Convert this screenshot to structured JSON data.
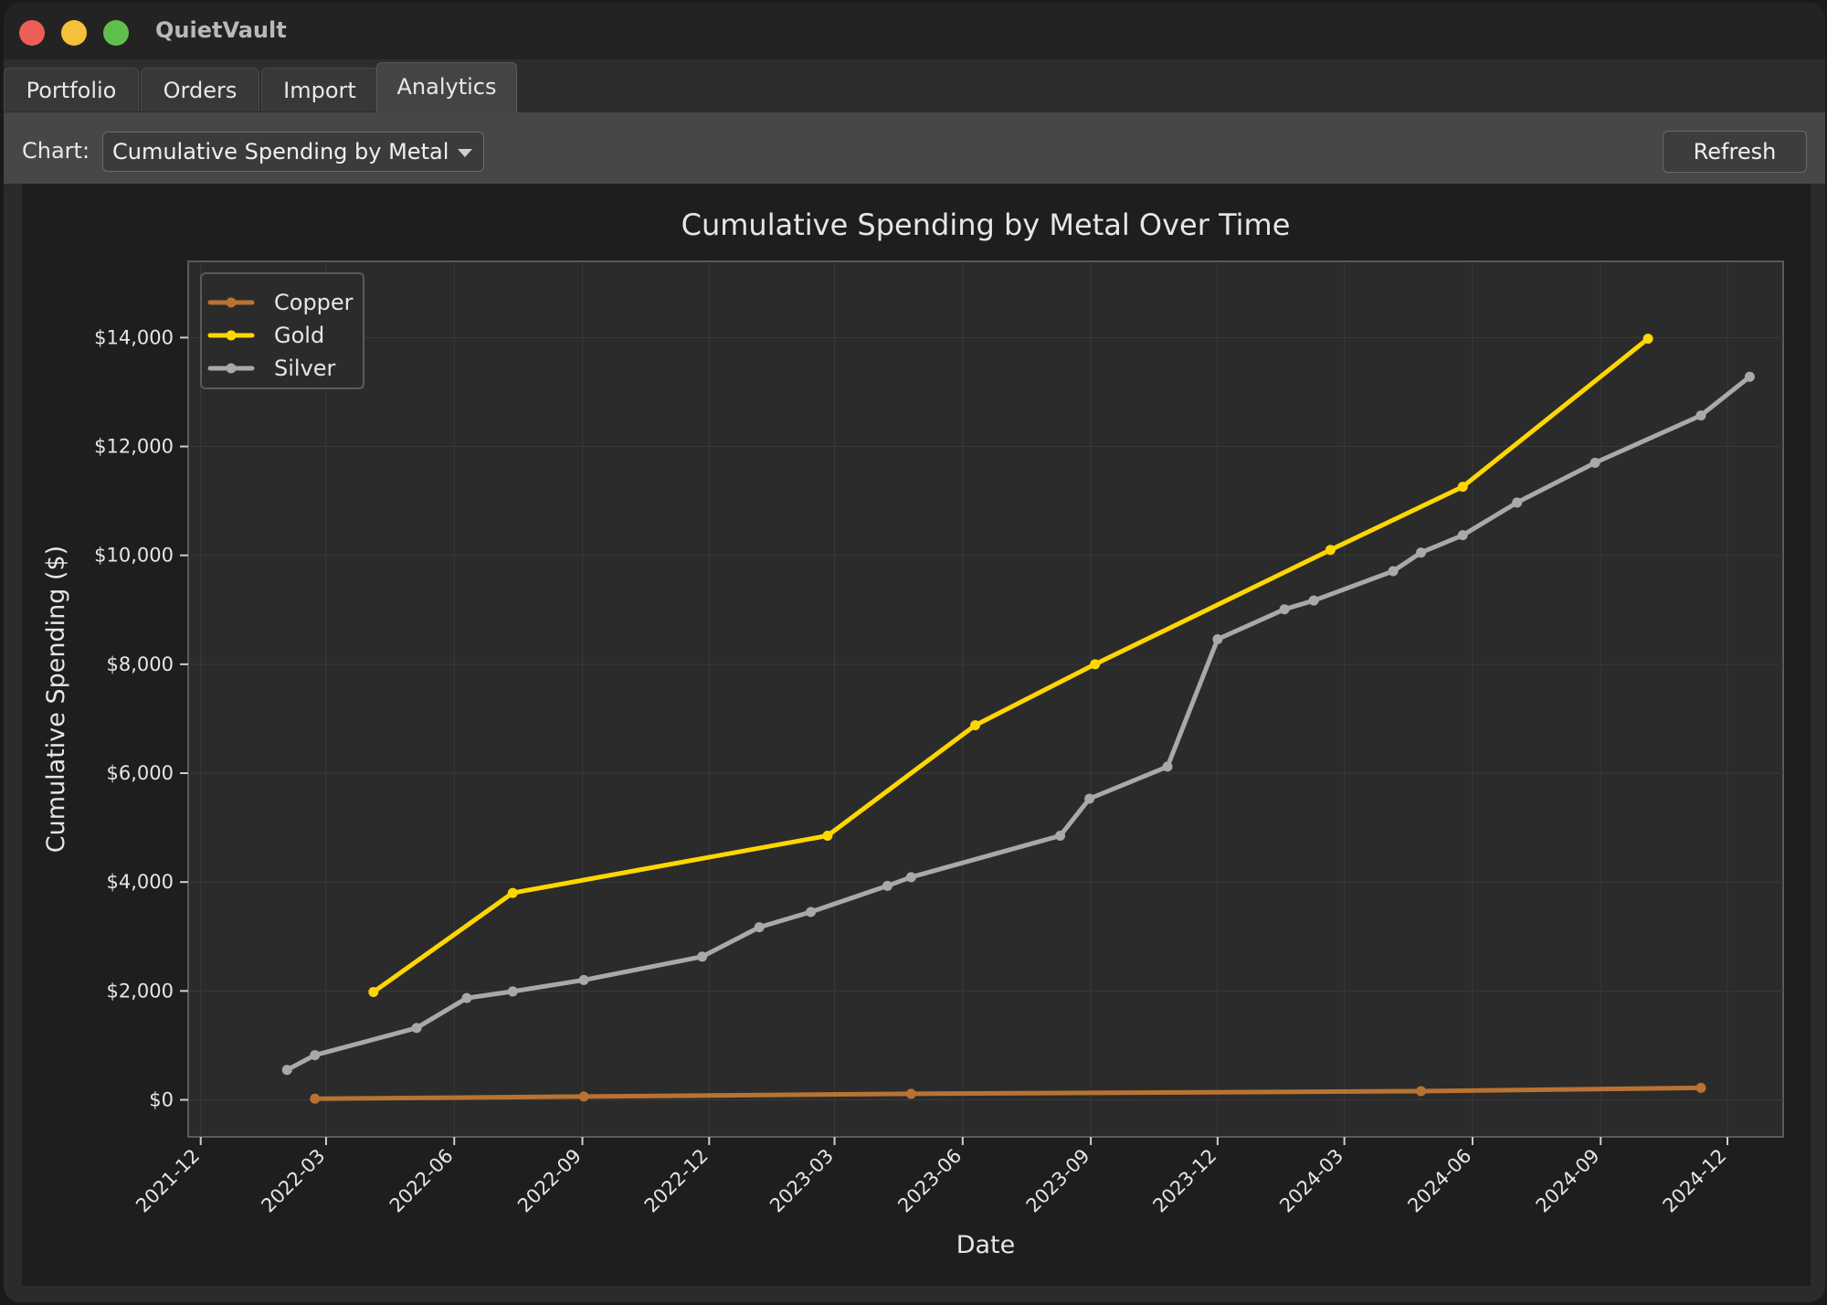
{
  "app": {
    "title": "QuietVault"
  },
  "tabs": [
    {
      "label": "Portfolio",
      "active": false
    },
    {
      "label": "Orders",
      "active": false
    },
    {
      "label": "Import",
      "active": false
    },
    {
      "label": "Analytics",
      "active": true
    }
  ],
  "toolbar": {
    "chart_label": "Chart:",
    "chart_select_value": "Cumulative Spending by Metal",
    "refresh_label": "Refresh"
  },
  "colors": {
    "copper": "#b87333",
    "gold": "#ffd700",
    "silver": "#a9a9a9"
  },
  "chart_data": {
    "type": "line",
    "title": "Cumulative Spending by Metal Over Time",
    "xlabel": "Date",
    "ylabel": "Cumulative Spending ($)",
    "xlim": [
      "2021-11-22",
      "2025-01-10"
    ],
    "ylim": [
      -680,
      15400
    ],
    "x_ticks": [
      "2021-12",
      "2022-03",
      "2022-06",
      "2022-09",
      "2022-12",
      "2023-03",
      "2023-06",
      "2023-09",
      "2023-12",
      "2024-03",
      "2024-06",
      "2024-09",
      "2024-12"
    ],
    "y_ticks": [
      {
        "value": 0,
        "label": "$0"
      },
      {
        "value": 2000,
        "label": "$2,000"
      },
      {
        "value": 4000,
        "label": "$4,000"
      },
      {
        "value": 6000,
        "label": "$6,000"
      },
      {
        "value": 8000,
        "label": "$8,000"
      },
      {
        "value": 10000,
        "label": "$10,000"
      },
      {
        "value": 12000,
        "label": "$12,000"
      },
      {
        "value": 14000,
        "label": "$14,000"
      }
    ],
    "grid": true,
    "legend_position": "top-left",
    "series": [
      {
        "name": "Copper",
        "color": "#b87333",
        "points": [
          {
            "x": "2022-02-21",
            "y": 20
          },
          {
            "x": "2022-09-02",
            "y": 60
          },
          {
            "x": "2023-04-25",
            "y": 110
          },
          {
            "x": "2024-04-25",
            "y": 160
          },
          {
            "x": "2024-11-12",
            "y": 220
          }
        ]
      },
      {
        "name": "Gold",
        "color": "#ffd700",
        "points": [
          {
            "x": "2022-04-04",
            "y": 1980
          },
          {
            "x": "2022-07-13",
            "y": 3800
          },
          {
            "x": "2023-02-24",
            "y": 4850
          },
          {
            "x": "2023-06-10",
            "y": 6880
          },
          {
            "x": "2023-09-04",
            "y": 8000
          },
          {
            "x": "2024-02-20",
            "y": 10100
          },
          {
            "x": "2024-05-25",
            "y": 11260
          },
          {
            "x": "2024-10-05",
            "y": 13980
          }
        ]
      },
      {
        "name": "Silver",
        "color": "#a9a9a9",
        "points": [
          {
            "x": "2022-02-01",
            "y": 550
          },
          {
            "x": "2022-02-21",
            "y": 820
          },
          {
            "x": "2022-05-05",
            "y": 1320
          },
          {
            "x": "2022-06-10",
            "y": 1870
          },
          {
            "x": "2022-07-13",
            "y": 1990
          },
          {
            "x": "2022-09-02",
            "y": 2200
          },
          {
            "x": "2022-11-26",
            "y": 2630
          },
          {
            "x": "2023-01-06",
            "y": 3170
          },
          {
            "x": "2023-02-12",
            "y": 3450
          },
          {
            "x": "2023-04-08",
            "y": 3930
          },
          {
            "x": "2023-04-25",
            "y": 4090
          },
          {
            "x": "2023-08-10",
            "y": 4850
          },
          {
            "x": "2023-08-31",
            "y": 5530
          },
          {
            "x": "2023-10-26",
            "y": 6120
          },
          {
            "x": "2023-12-01",
            "y": 8460
          },
          {
            "x": "2024-01-18",
            "y": 9010
          },
          {
            "x": "2024-02-08",
            "y": 9170
          },
          {
            "x": "2024-04-05",
            "y": 9710
          },
          {
            "x": "2024-04-25",
            "y": 10050
          },
          {
            "x": "2024-05-25",
            "y": 10370
          },
          {
            "x": "2024-07-03",
            "y": 10970
          },
          {
            "x": "2024-08-28",
            "y": 11700
          },
          {
            "x": "2024-11-12",
            "y": 12570
          },
          {
            "x": "2024-12-17",
            "y": 13280
          }
        ]
      }
    ]
  }
}
